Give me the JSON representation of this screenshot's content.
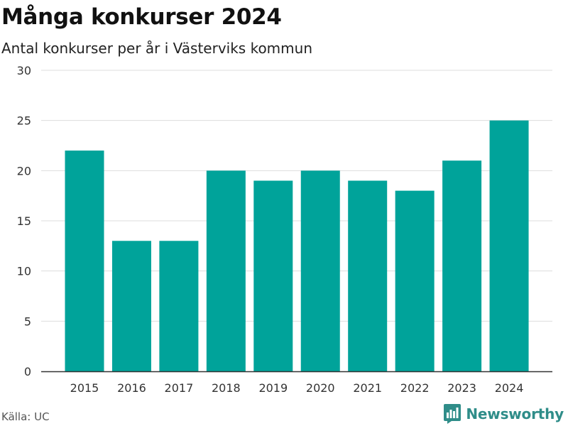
{
  "title": "Många konkurser 2024",
  "subtitle": "Antal konkurser per år i Västerviks kommun",
  "source": "Källa: UC",
  "brand": {
    "name": "Newsworthy",
    "icon": "bar-chart-logo-icon",
    "color": "#2f8d89"
  },
  "chart_data": {
    "type": "bar",
    "title": "Många konkurser 2024",
    "subtitle": "Antal konkurser per år i Västerviks kommun",
    "categories": [
      "2015",
      "2016",
      "2017",
      "2018",
      "2019",
      "2020",
      "2021",
      "2022",
      "2023",
      "2024"
    ],
    "values": [
      22,
      13,
      13,
      20,
      19,
      20,
      19,
      18,
      21,
      25
    ],
    "ylim": [
      0,
      30
    ],
    "yticks": [
      0,
      5,
      10,
      15,
      20,
      25,
      30
    ],
    "grid": true,
    "legend": "none",
    "colors": {
      "bar": "#00a39a",
      "grid": "#dddddd",
      "axis": "#333333"
    }
  }
}
